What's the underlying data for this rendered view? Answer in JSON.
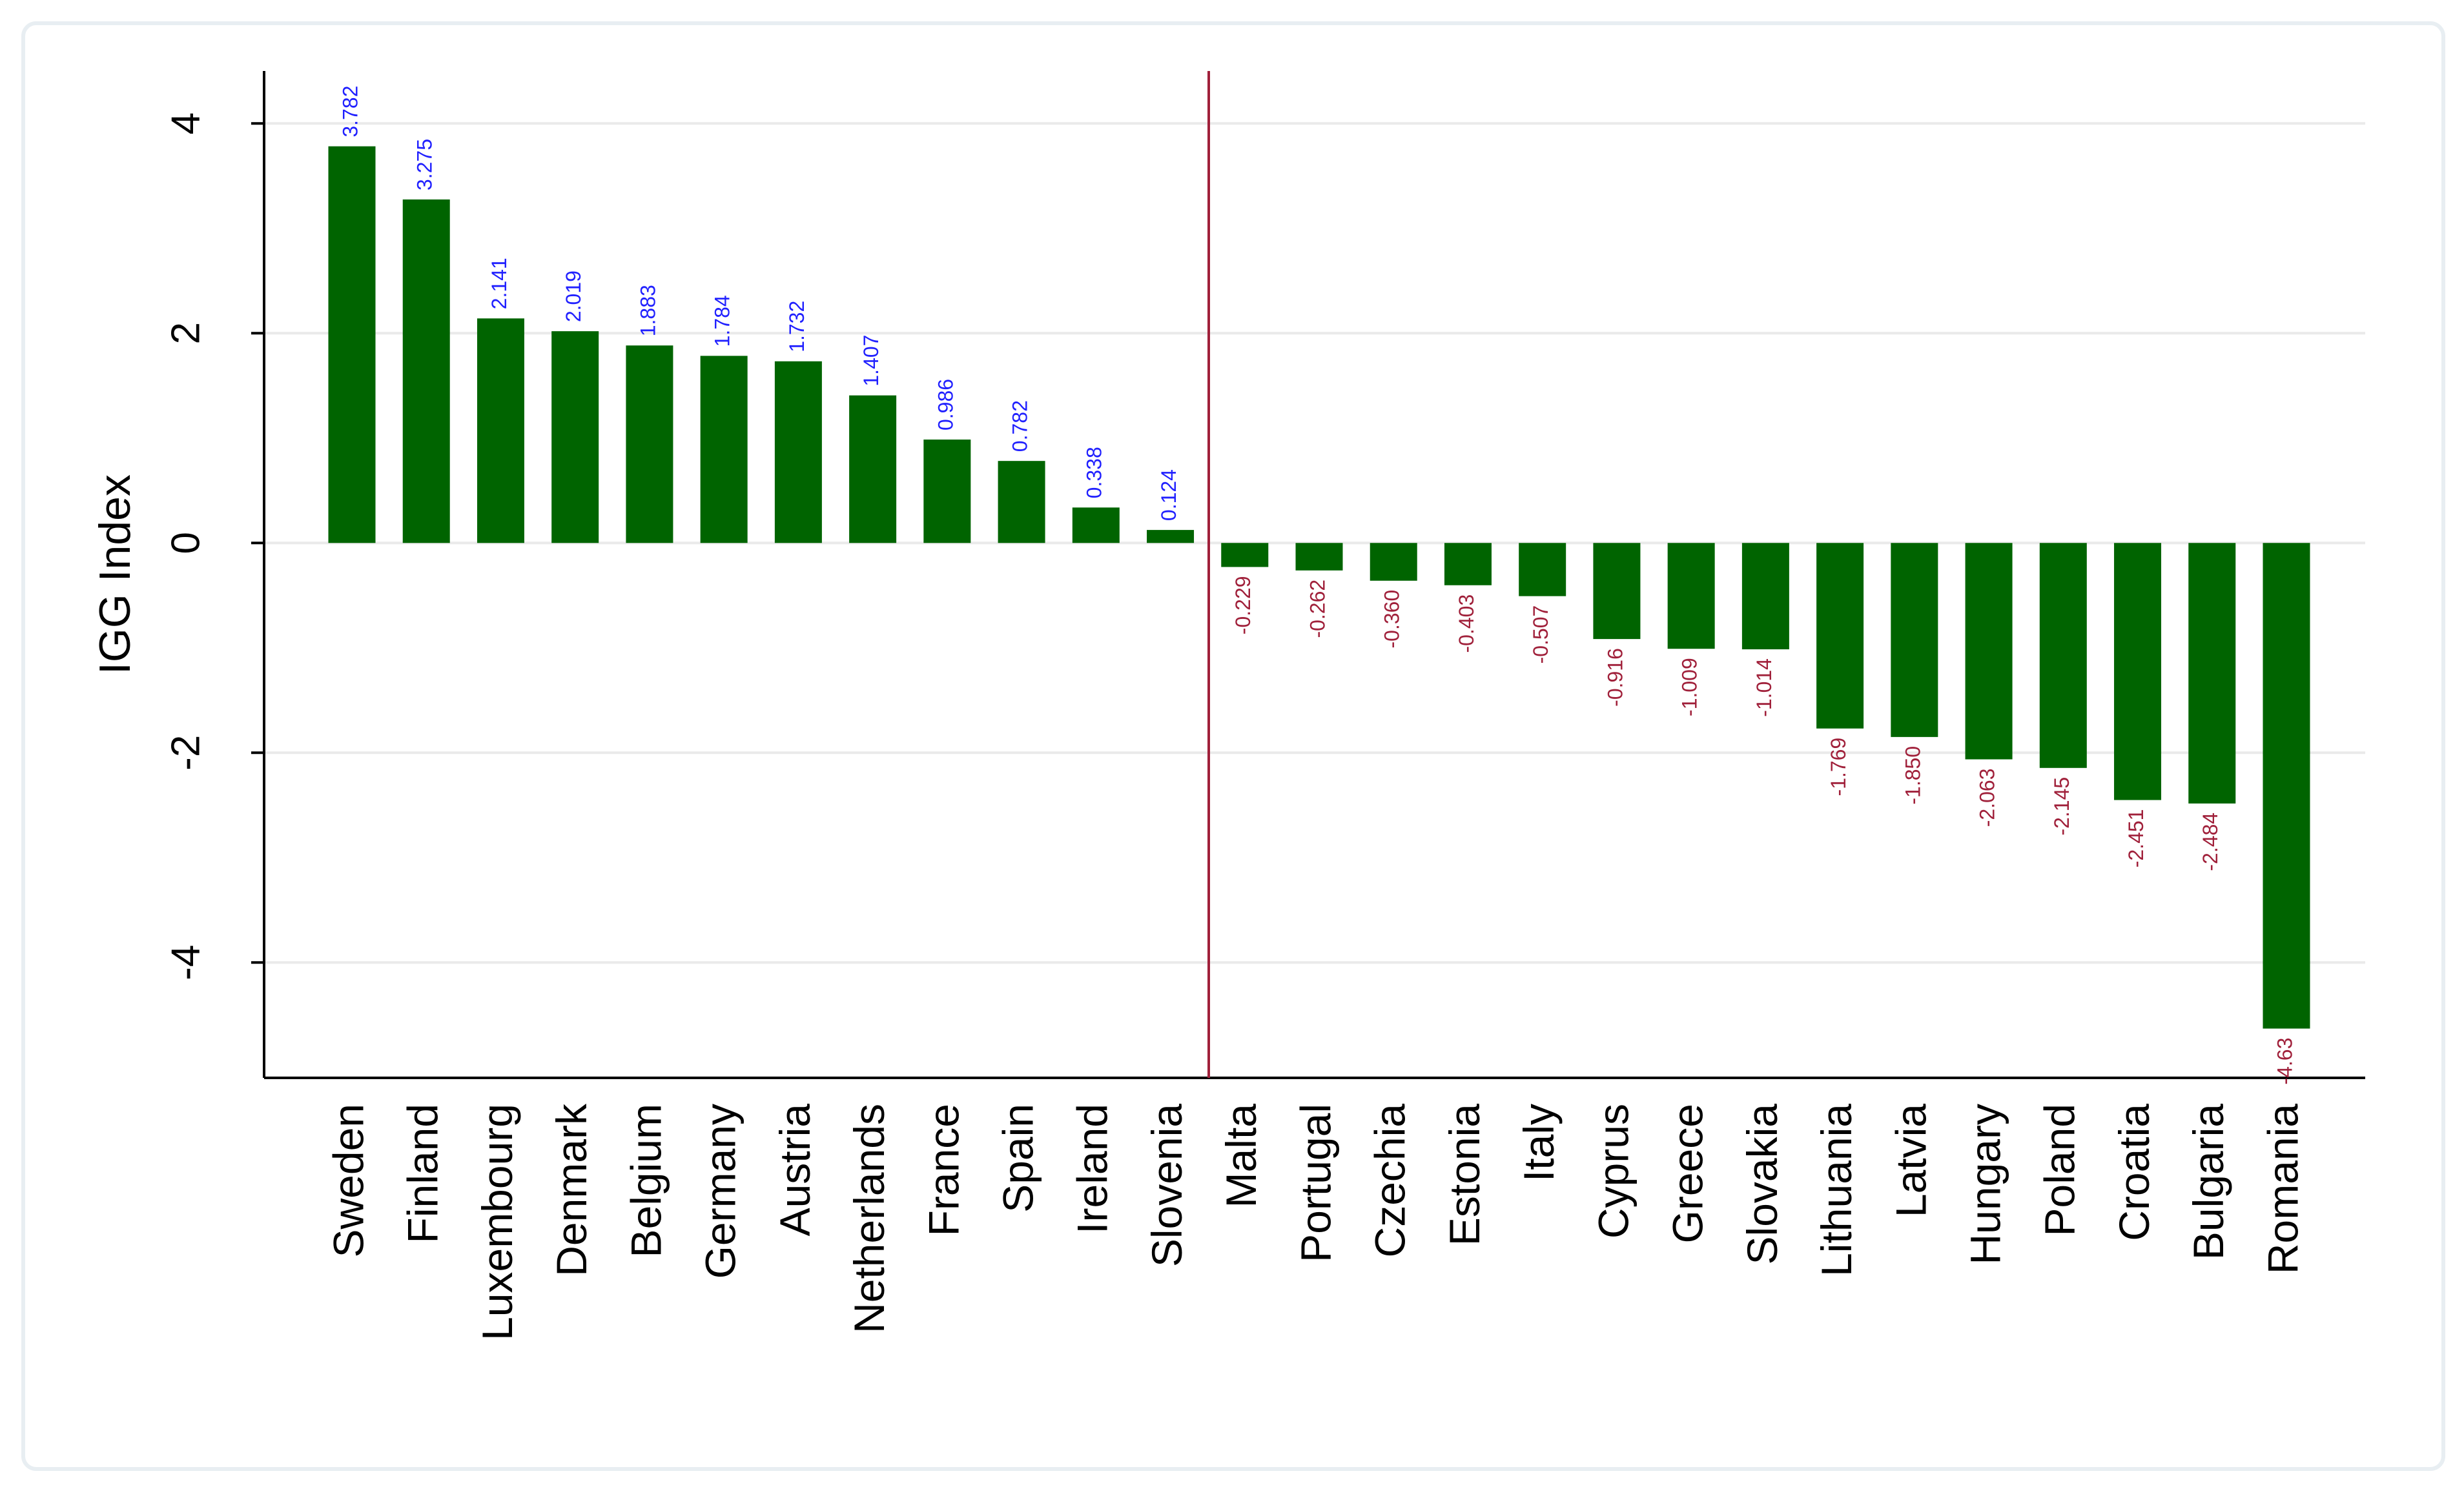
{
  "chart_data": {
    "type": "bar",
    "y_label": "IGG Index",
    "categories": [
      "Sweden",
      "Finland",
      "Luxembourg",
      "Denmark",
      "Belgium",
      "Germany",
      "Austria",
      "Netherlands",
      "France",
      "Spain",
      "Ireland",
      "Slovenia",
      "Malta",
      "Portugal",
      "Czechia",
      "Estonia",
      "Italy",
      "Cyprus",
      "Greece",
      "Slovakia",
      "Lithuania",
      "Latvia",
      "Hungary",
      "Poland",
      "Croatia",
      "Bulgaria",
      "Romania"
    ],
    "values": [
      3.782,
      3.275,
      2.141,
      2.019,
      1.883,
      1.784,
      1.732,
      1.407,
      0.986,
      0.782,
      0.338,
      0.124,
      -0.229,
      -0.262,
      -0.36,
      -0.403,
      -0.507,
      -0.916,
      -1.009,
      -1.014,
      -1.769,
      -1.85,
      -2.063,
      -2.145,
      -2.451,
      -2.484,
      -4.63
    ],
    "value_labels": [
      "3.782",
      "3.275",
      "2.141",
      "2.019",
      "1.883",
      "1.784",
      "1.732",
      "1.407",
      "0.986",
      "0.782",
      "0.338",
      "0.124",
      "-0.229",
      "-0.262",
      "-0.360",
      "-0.403",
      "-0.507",
      "-0.916",
      "-1.009",
      "-1.014",
      "-1.769",
      "-1.850",
      "-2.063",
      "-2.145",
      "-2.451",
      "-2.484",
      "-4.63"
    ],
    "color": "#006400",
    "positive_label_color": "#2020ff",
    "negative_label_color": "#a0203a",
    "ylim": [
      -5.1,
      4.5
    ],
    "yticks": [
      -4,
      -2,
      0,
      2,
      4
    ],
    "grid": true
  }
}
